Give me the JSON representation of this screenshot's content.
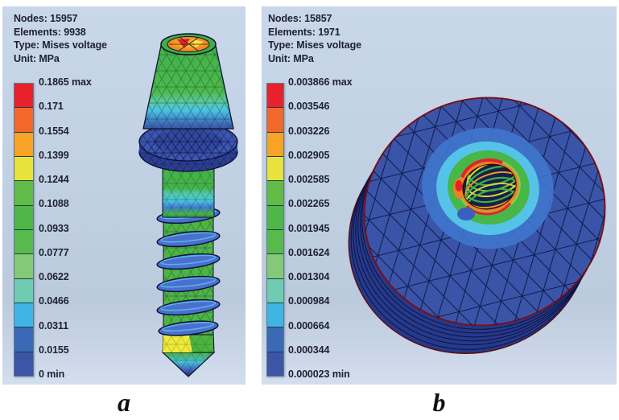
{
  "panel_a": {
    "info_lines": [
      "Nodes: 15957",
      "Elements: 9938",
      "Type: Mises voltage",
      "Unit: MPa"
    ],
    "legend_labels": [
      "0.1865 max",
      "0.171",
      "0.1554",
      "0.1399",
      "0.1244",
      "0.1088",
      "0.0933",
      "0.0777",
      "0.0622",
      "0.0466",
      "0.0311",
      "0.0155",
      "0 min"
    ],
    "caption": "a"
  },
  "panel_b": {
    "info_lines": [
      "Nodes: 15857",
      "Elements: 1971",
      "Type: Mises voltage",
      "Unit: MPa"
    ],
    "legend_labels": [
      "0.003866 max",
      "0.003546",
      "0.003226",
      "0.002905",
      "0.002585",
      "0.002265",
      "0.001945",
      "0.001624",
      "0.001304",
      "0.000984",
      "0.000664",
      "0.000344",
      "0.000023 min"
    ],
    "caption": "b"
  },
  "color_scale": [
    "#e8212d",
    "#f2682a",
    "#f9a326",
    "#e9e23d",
    "#62bb47",
    "#4eb748",
    "#58ba4d",
    "#85c878",
    "#6fccb2",
    "#41b4e6",
    "#3a6ab5",
    "#3c55a6"
  ],
  "colors": {
    "panel_background_top": "#c9d7ea",
    "panel_background_bottom": "#d3deee",
    "text": "#1d2130",
    "mesh_blue": "#3a55a8",
    "mesh_green": "#4db748"
  }
}
